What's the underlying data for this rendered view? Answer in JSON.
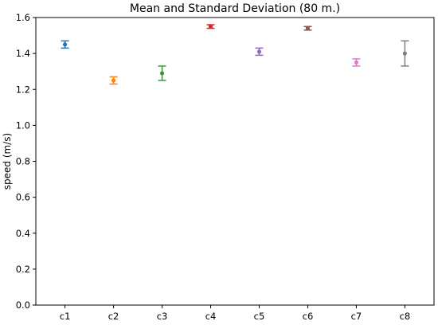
{
  "chart_data": {
    "type": "scatter",
    "title": "Mean and Standard Deviation (80 m.)",
    "xlabel": "",
    "ylabel": "speed (m/s)",
    "ylim": [
      0,
      1.6
    ],
    "yticks": [
      0.0,
      0.2,
      0.4,
      0.6,
      0.8,
      1.0,
      1.2,
      1.4,
      1.6
    ],
    "ytick_labels": [
      "0.0",
      "0.2",
      "0.4",
      "0.6",
      "0.8",
      "1.0",
      "1.2",
      "1.4",
      "1.6"
    ],
    "categories": [
      "c1",
      "c2",
      "c3",
      "c4",
      "c5",
      "c6",
      "c7",
      "c8"
    ],
    "means": [
      1.45,
      1.25,
      1.29,
      1.55,
      1.41,
      1.54,
      1.35,
      1.4
    ],
    "std": [
      0.02,
      0.02,
      0.04,
      0.01,
      0.02,
      0.01,
      0.02,
      0.07
    ],
    "colors": [
      "#1f77b4",
      "#ff7f0e",
      "#2ca02c",
      "#d62728",
      "#9467bd",
      "#8c564b",
      "#e377c2",
      "#7f7f7f"
    ],
    "grid": false,
    "legend": "none"
  }
}
